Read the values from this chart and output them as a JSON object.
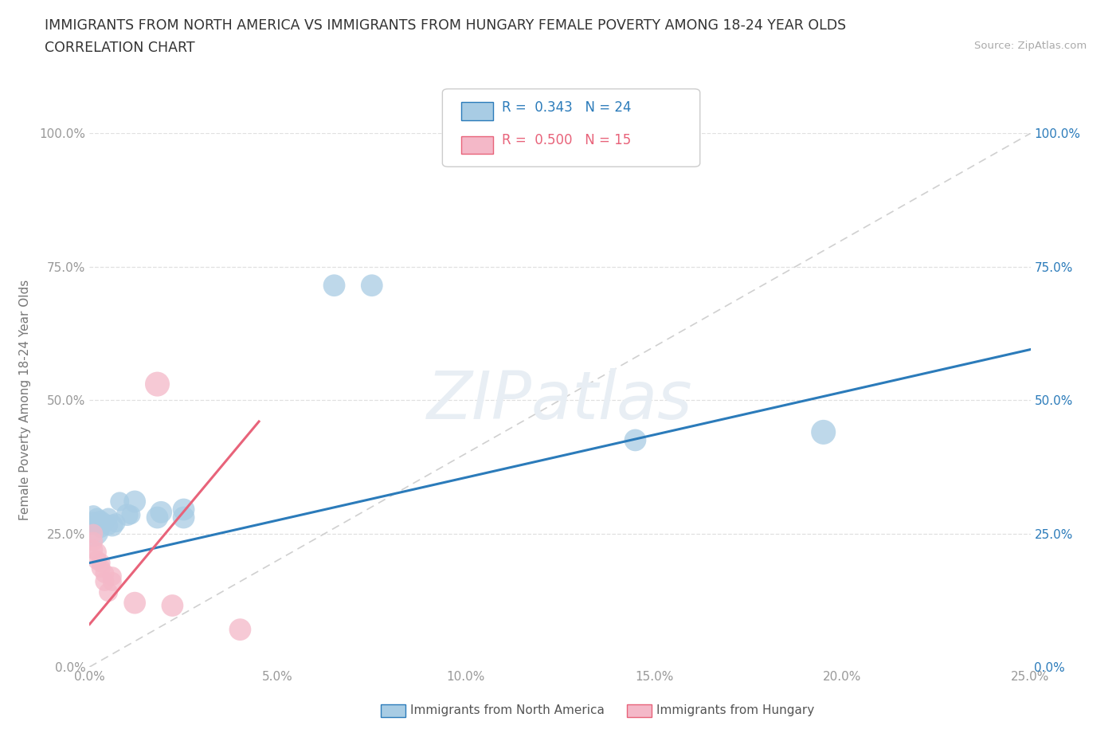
{
  "title_line1": "IMMIGRANTS FROM NORTH AMERICA VS IMMIGRANTS FROM HUNGARY FEMALE POVERTY AMONG 18-24 YEAR OLDS",
  "title_line2": "CORRELATION CHART",
  "source": "Source: ZipAtlas.com",
  "xlabel_bottom": "Immigrants from North America",
  "xlabel_right": "Immigrants from Hungary",
  "ylabel": "Female Poverty Among 18-24 Year Olds",
  "r_blue": 0.343,
  "n_blue": 24,
  "r_pink": 0.5,
  "n_pink": 15,
  "blue_color": "#a8cce4",
  "pink_color": "#f4b8c8",
  "blue_line_color": "#2b7bba",
  "pink_line_color": "#e8637a",
  "diagonal_color": "#d0d0d0",
  "blue_scatter_x": [
    0.001,
    0.001,
    0.001,
    0.002,
    0.002,
    0.003,
    0.003,
    0.004,
    0.005,
    0.005,
    0.006,
    0.007,
    0.008,
    0.01,
    0.011,
    0.012,
    0.018,
    0.019,
    0.025,
    0.025,
    0.065,
    0.075,
    0.145,
    0.195
  ],
  "blue_scatter_y": [
    0.255,
    0.27,
    0.285,
    0.265,
    0.28,
    0.26,
    0.275,
    0.27,
    0.265,
    0.28,
    0.265,
    0.27,
    0.31,
    0.285,
    0.285,
    0.31,
    0.28,
    0.29,
    0.28,
    0.295,
    0.715,
    0.715,
    0.425,
    0.44
  ],
  "blue_scatter_size": [
    800,
    400,
    300,
    300,
    300,
    300,
    300,
    300,
    300,
    300,
    400,
    300,
    300,
    400,
    300,
    400,
    400,
    400,
    400,
    400,
    400,
    400,
    400,
    500
  ],
  "pink_scatter_x": [
    0.001,
    0.001,
    0.001,
    0.002,
    0.002,
    0.003,
    0.003,
    0.004,
    0.004,
    0.005,
    0.006,
    0.006,
    0.012,
    0.022,
    0.04
  ],
  "pink_scatter_y": [
    0.22,
    0.235,
    0.25,
    0.2,
    0.215,
    0.195,
    0.185,
    0.175,
    0.16,
    0.14,
    0.16,
    0.17,
    0.12,
    0.115,
    0.07
  ],
  "pink_scatter_size": [
    300,
    300,
    300,
    300,
    300,
    300,
    300,
    300,
    300,
    300,
    300,
    300,
    400,
    400,
    400
  ],
  "pink_high_x": [
    0.018
  ],
  "pink_high_y": [
    0.53
  ],
  "xlim": [
    0.0,
    0.25
  ],
  "ylim": [
    0.0,
    1.0
  ],
  "yticks": [
    0.0,
    0.25,
    0.5,
    0.75,
    1.0
  ],
  "xticks_bottom": [
    0.0,
    0.05,
    0.1,
    0.15,
    0.2,
    0.25
  ],
  "background_color": "#ffffff",
  "grid_color": "#e0e0e0",
  "blue_line_x": [
    0.0,
    0.25
  ],
  "blue_line_y": [
    0.195,
    0.595
  ],
  "pink_line_x": [
    0.0,
    0.045
  ],
  "pink_line_y": [
    0.08,
    0.46
  ]
}
